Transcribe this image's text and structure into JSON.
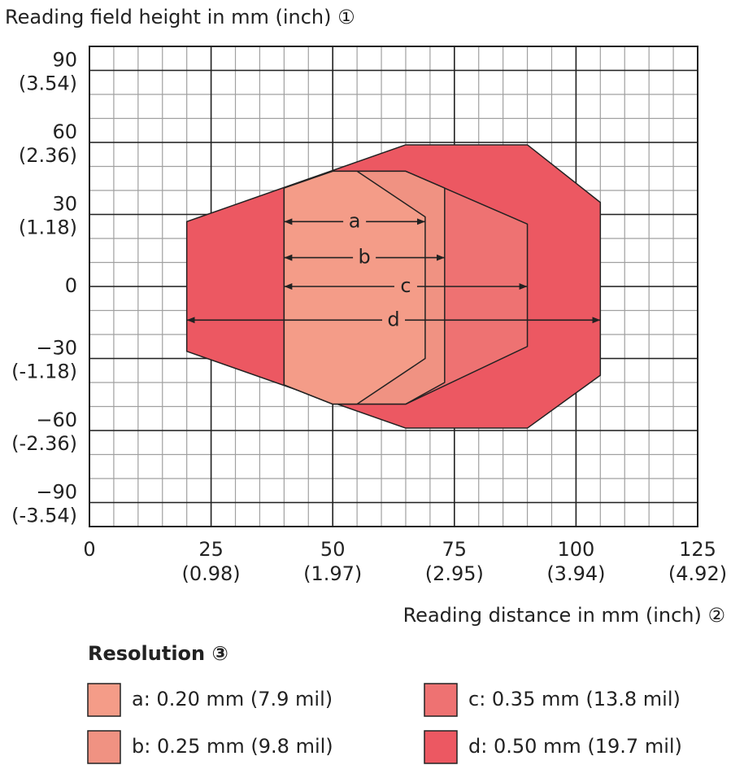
{
  "chart_data": {
    "type": "field",
    "y_title": "Reading field height in mm (inch) ①",
    "x_title": "Reading distance in mm (inch) ②",
    "legend_title": "Resolution ③",
    "xlim": [
      0,
      125
    ],
    "ylim": [
      -100,
      100
    ],
    "xticks": [
      0,
      {
        "value": 25,
        "label": "25",
        "inch": "(0.98)"
      },
      {
        "value": 50,
        "label": "50",
        "inch": "(1.97)"
      },
      {
        "value": 75,
        "label": "75",
        "inch": "(2.95)"
      },
      {
        "value": 100,
        "label": "100",
        "inch": "(3.94)"
      },
      {
        "value": 125,
        "label": "125",
        "inch": "(4.92)"
      }
    ],
    "yticks": [
      {
        "value": 90,
        "label": "90",
        "inch": "(3.54)"
      },
      {
        "value": 60,
        "label": "60",
        "inch": "(2.36)"
      },
      {
        "value": 30,
        "label": "30",
        "inch": "(1.18)"
      },
      0,
      {
        "value": -30,
        "label": "−30",
        "inch": "(-1.18)"
      },
      {
        "value": -60,
        "label": "−60",
        "inch": "(-2.36)"
      },
      {
        "value": -90,
        "label": "−90",
        "inch": "(-3.54)"
      }
    ],
    "grid": true,
    "series": [
      {
        "name": "d: 0.50 mm (19.7 mil)",
        "label": "d",
        "color": "#ec5862",
        "x": [
          20,
          65,
          90,
          105,
          105,
          90,
          65,
          20
        ],
        "y": [
          27,
          59,
          59,
          35,
          -37,
          -59,
          -59,
          -27
        ]
      },
      {
        "name": "c: 0.35 mm (13.8 mil)",
        "label": "c",
        "color": "#ee7272",
        "x": [
          40,
          50,
          65,
          90,
          90,
          65,
          50,
          40
        ],
        "y": [
          41,
          48,
          48,
          26,
          -25,
          -49,
          -49,
          -41
        ]
      },
      {
        "name": "b: 0.25 mm (9.8 mil)",
        "label": "b",
        "color": "#f09282",
        "x": [
          40,
          50,
          65,
          73,
          73,
          65,
          50,
          40
        ],
        "y": [
          41,
          48,
          48,
          41,
          -40,
          -49,
          -49,
          -41
        ]
      },
      {
        "name": "a: 0.20 mm (7.9 mil)",
        "label": "a",
        "color": "#f49c88",
        "x": [
          40,
          50,
          55,
          69,
          69,
          55,
          50,
          40
        ],
        "y": [
          41,
          48,
          48,
          29,
          -30,
          -49,
          -49,
          -41
        ]
      }
    ]
  }
}
